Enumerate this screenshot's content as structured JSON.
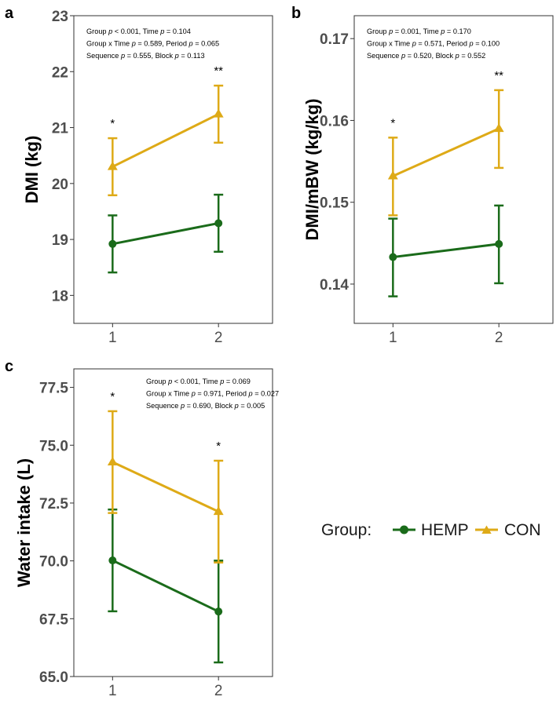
{
  "colors": {
    "HEMP": "#1a6b1a",
    "CON": "#deaa17",
    "frame": "#333333",
    "tick": "#4d4d4d"
  },
  "legend": {
    "title": "Group:",
    "items": [
      "HEMP",
      "CON"
    ]
  },
  "chart_data": [
    {
      "type": "line",
      "panel": "a",
      "ylabel": "DMI (kg)",
      "ylim": [
        17.5,
        23
      ],
      "yticks": [
        18,
        19,
        20,
        21,
        22,
        23
      ],
      "ytick_labels": [
        "18",
        "19",
        "20",
        "21",
        "22",
        "23"
      ],
      "x": [
        1,
        2
      ],
      "xtick_labels": [
        "1",
        "2"
      ],
      "series": [
        {
          "name": "HEMP",
          "values": [
            18.92,
            19.29
          ],
          "lower": [
            18.41,
            18.78
          ],
          "upper": [
            19.43,
            19.8
          ]
        },
        {
          "name": "CON",
          "values": [
            20.3,
            21.24
          ],
          "lower": [
            19.79,
            20.73
          ],
          "upper": [
            20.81,
            21.75
          ]
        }
      ],
      "significance": [
        "*",
        "**"
      ],
      "annotations": [
        [
          {
            "t": "Group "
          },
          {
            "t": "p",
            "i": true
          },
          {
            "t": " < 0.001, Time "
          },
          {
            "t": "p",
            "i": true
          },
          {
            "t": " = 0.104"
          }
        ],
        [
          {
            "t": "Group x Time "
          },
          {
            "t": "p",
            "i": true
          },
          {
            "t": " = 0.589, Period "
          },
          {
            "t": "p",
            "i": true
          },
          {
            "t": " = 0.065"
          }
        ],
        [
          {
            "t": "Sequence "
          },
          {
            "t": "p",
            "i": true
          },
          {
            "t": " = 0.555, Block "
          },
          {
            "t": "p",
            "i": true
          },
          {
            "t": " = 0.113"
          }
        ]
      ]
    },
    {
      "type": "line",
      "panel": "b",
      "ylabel": "DMI/mBW (kg/kg)",
      "ylim": [
        0.1352,
        0.1728
      ],
      "yticks": [
        0.14,
        0.15,
        0.16,
        0.17
      ],
      "ytick_labels": [
        "0.14",
        "0.15",
        "0.16",
        "0.17"
      ],
      "x": [
        1,
        2
      ],
      "xtick_labels": [
        "1",
        "2"
      ],
      "series": [
        {
          "name": "HEMP",
          "values": [
            0.1433,
            0.1449
          ],
          "lower": [
            0.1385,
            0.1401
          ],
          "upper": [
            0.148,
            0.1496
          ]
        },
        {
          "name": "CON",
          "values": [
            0.1532,
            0.159
          ],
          "lower": [
            0.1484,
            0.1542
          ],
          "upper": [
            0.1579,
            0.1637
          ]
        }
      ],
      "significance": [
        "*",
        "**"
      ],
      "annotations": [
        [
          {
            "t": "Group "
          },
          {
            "t": "p",
            "i": true
          },
          {
            "t": " = 0.001, Time "
          },
          {
            "t": "p",
            "i": true
          },
          {
            "t": " = 0.170"
          }
        ],
        [
          {
            "t": "Group x Time "
          },
          {
            "t": "p",
            "i": true
          },
          {
            "t": " = 0.571, Period "
          },
          {
            "t": "p",
            "i": true
          },
          {
            "t": " = 0.100"
          }
        ],
        [
          {
            "t": "Sequence "
          },
          {
            "t": "p",
            "i": true
          },
          {
            "t": " = 0.520, Block "
          },
          {
            "t": "p",
            "i": true
          },
          {
            "t": " = 0.552"
          }
        ]
      ]
    },
    {
      "type": "line",
      "panel": "c",
      "ylabel": "Water intake (L)",
      "ylim": [
        65,
        78.3
      ],
      "yticks": [
        65,
        67.5,
        70,
        72.5,
        75,
        77.5
      ],
      "ytick_labels": [
        "65.0",
        "67.5",
        "70.0",
        "72.5",
        "75.0",
        "77.5"
      ],
      "x": [
        1,
        2
      ],
      "xtick_labels": [
        "1",
        "2"
      ],
      "series": [
        {
          "name": "HEMP",
          "values": [
            70.02,
            67.81
          ],
          "lower": [
            67.82,
            65.61
          ],
          "upper": [
            72.22,
            70.01
          ]
        },
        {
          "name": "CON",
          "values": [
            74.27,
            72.13
          ],
          "lower": [
            72.07,
            69.93
          ],
          "upper": [
            76.47,
            74.33
          ]
        }
      ],
      "significance": [
        "*",
        "*"
      ],
      "annotations": [
        [
          {
            "t": "Group "
          },
          {
            "t": "p",
            "i": true
          },
          {
            "t": " < 0.001, Time "
          },
          {
            "t": "p",
            "i": true
          },
          {
            "t": " = 0.069"
          }
        ],
        [
          {
            "t": "Group x Time "
          },
          {
            "t": "p",
            "i": true
          },
          {
            "t": " = 0.971, Period "
          },
          {
            "t": "p",
            "i": true
          },
          {
            "t": " = 0.027"
          }
        ],
        [
          {
            "t": "Sequence "
          },
          {
            "t": "p",
            "i": true
          },
          {
            "t": " = 0.690, Block "
          },
          {
            "t": "p",
            "i": true
          },
          {
            "t": " = 0.005"
          }
        ]
      ]
    }
  ]
}
